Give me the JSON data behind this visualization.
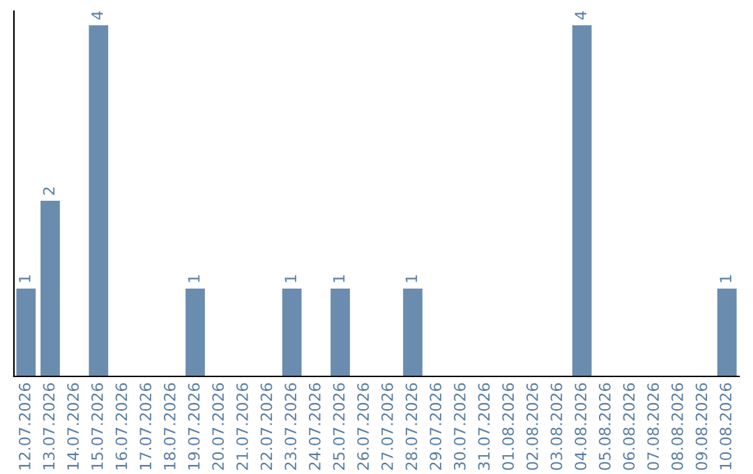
{
  "chart_data": {
    "type": "bar",
    "categories": [
      "12.07.2026",
      "13.07.2026",
      "14.07.2026",
      "15.07.2026",
      "16.07.2026",
      "17.07.2026",
      "18.07.2026",
      "19.07.2026",
      "20.07.2026",
      "21.07.2026",
      "22.07.2026",
      "23.07.2026",
      "24.07.2026",
      "25.07.2026",
      "26.07.2026",
      "27.07.2026",
      "28.07.2026",
      "29.07.2026",
      "30.07.2026",
      "31.07.2026",
      "01.08.2026",
      "02.08.2026",
      "03.08.2026",
      "04.08.2026",
      "05.08.2026",
      "06.08.2026",
      "07.08.2026",
      "08.08.2026",
      "09.08.2026",
      "10.08.2026"
    ],
    "values": [
      1,
      2,
      0,
      4,
      0,
      0,
      0,
      1,
      0,
      0,
      0,
      1,
      0,
      1,
      0,
      0,
      1,
      0,
      0,
      0,
      0,
      0,
      0,
      4,
      0,
      0,
      0,
      0,
      0,
      1
    ],
    "value_labels": [
      "1",
      "2",
      null,
      "4",
      null,
      null,
      null,
      "1",
      null,
      null,
      null,
      "1",
      null,
      "1",
      null,
      null,
      "1",
      null,
      null,
      null,
      null,
      null,
      null,
      "4",
      null,
      null,
      null,
      null,
      null,
      "1"
    ],
    "color": "#6a8caf",
    "grid": false,
    "legend": false
  }
}
